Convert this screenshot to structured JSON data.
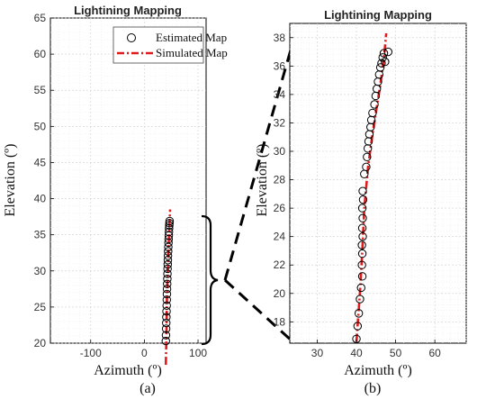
{
  "chart_data": [
    {
      "id": "a",
      "type": "scatter",
      "title": "Lightining Mapping",
      "xlabel": "Azimuth (º)",
      "ylabel": "Elevation (º)",
      "panel_label": "(a)",
      "xlim": [
        -175,
        115
      ],
      "ylim": [
        20,
        65
      ],
      "xticks": [
        -100,
        0,
        100
      ],
      "yticks": [
        20,
        25,
        30,
        35,
        40,
        45,
        50,
        55,
        60,
        65
      ],
      "grid": true,
      "legend": {
        "position": "top-right",
        "entries": [
          {
            "label": "Estimated Map",
            "marker": "circle"
          },
          {
            "label": "Simulated Map",
            "line": "dash-dot",
            "color": "#e31a1c"
          }
        ]
      },
      "series": [
        {
          "name": "Estimated Map",
          "kind": "markers",
          "x": [
            40.0,
            40.3,
            40.6,
            40.8,
            41.0,
            41.3,
            41.6,
            41.8,
            42.0,
            42.2,
            42.5,
            42.8,
            43.0,
            43.2,
            43.5,
            43.8,
            44.0,
            44.3,
            44.6,
            44.9,
            45.2,
            45.5,
            45.8,
            46.1,
            46.4,
            46.7,
            47.0
          ],
          "y": [
            20.3,
            21.1,
            22.0,
            22.8,
            23.6,
            24.4,
            25.2,
            26.0,
            26.8,
            27.5,
            28.2,
            28.9,
            29.6,
            30.3,
            30.9,
            31.5,
            32.1,
            32.7,
            33.3,
            33.9,
            34.4,
            34.9,
            35.4,
            35.9,
            36.3,
            36.6,
            36.9
          ]
        },
        {
          "name": "Simulated Map",
          "kind": "line",
          "style": "dash-dot",
          "color": "#e31a1c",
          "x": [
            40.0,
            41.0,
            42.0,
            44.0,
            46.0,
            48.0
          ],
          "y": [
            17.0,
            20.5,
            26.0,
            31.0,
            35.0,
            38.5
          ]
        }
      ]
    },
    {
      "id": "b",
      "type": "scatter",
      "title": "Lightining Mapping",
      "xlabel": "Azimuth (º)",
      "ylabel": "Elevation (º)",
      "panel_label": "(b)",
      "xlim": [
        23,
        68
      ],
      "ylim": [
        16.5,
        39
      ],
      "xticks": [
        30,
        40,
        50,
        60
      ],
      "yticks": [
        18,
        20,
        22,
        24,
        26,
        28,
        30,
        32,
        34,
        36,
        38
      ],
      "grid": true,
      "series": [
        {
          "name": "Estimated Map",
          "kind": "markers",
          "x": [
            40.0,
            40.3,
            40.6,
            40.9,
            41.2,
            41.5,
            41.4,
            41.5,
            41.4,
            41.6,
            41.5,
            41.6,
            41.5,
            41.7,
            41.6,
            42.0,
            42.5,
            42.7,
            42.9,
            43.1,
            43.3,
            43.6,
            43.8,
            44.1,
            44.6,
            44.9,
            45.2,
            45.5,
            45.8,
            46.1,
            46.4,
            46.7,
            47.0,
            47.3,
            48.1
          ],
          "y": [
            16.8,
            17.7,
            18.6,
            19.6,
            20.4,
            21.2,
            22.0,
            22.8,
            23.4,
            24.0,
            24.6,
            25.3,
            26.0,
            26.6,
            27.2,
            28.4,
            28.9,
            29.6,
            30.2,
            30.7,
            31.2,
            31.7,
            32.2,
            32.7,
            33.3,
            33.9,
            34.4,
            34.9,
            35.4,
            35.9,
            36.2,
            36.6,
            36.9,
            36.3,
            37.0
          ]
        },
        {
          "name": "Simulated Map",
          "kind": "line",
          "style": "dash-dot",
          "color": "#e31a1c",
          "x": [
            40.0,
            40.5,
            41.0,
            41.5,
            42.0,
            43.0,
            44.0,
            45.0,
            46.0,
            47.0,
            47.6
          ],
          "y": [
            16.6,
            18.5,
            20.5,
            23.0,
            26.0,
            29.0,
            31.0,
            32.8,
            34.5,
            36.5,
            38.3
          ]
        }
      ]
    }
  ]
}
